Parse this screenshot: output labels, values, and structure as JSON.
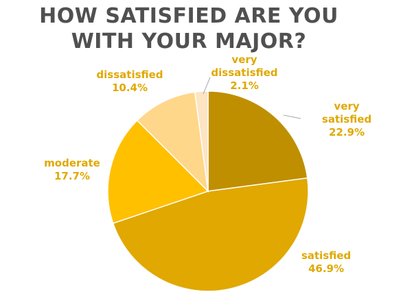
{
  "chart_data": {
    "type": "pie",
    "title_lines": [
      "HOW SATISFIED ARE YOU",
      "WITH YOUR MAJOR?"
    ],
    "slices": [
      {
        "label_lines": [
          "very",
          "satisfied"
        ],
        "value": 22.9,
        "value_text": "22.9%",
        "color": "#bf8f00"
      },
      {
        "label_lines": [
          "satisfied"
        ],
        "value": 46.9,
        "value_text": "46.9%",
        "color": "#e0a800"
      },
      {
        "label_lines": [
          "moderate"
        ],
        "value": 17.7,
        "value_text": "17.7%",
        "color": "#ffc000"
      },
      {
        "label_lines": [
          "dissatisfied"
        ],
        "value": 10.4,
        "value_text": "10.4%",
        "color": "#ffd78a"
      },
      {
        "label_lines": [
          "very",
          "dissatisfied"
        ],
        "value": 2.1,
        "value_text": "2.1%",
        "color": "#fde4c2"
      }
    ],
    "label_color": "#e0a800",
    "start_angle_deg": 0,
    "direction": "clockwise"
  }
}
